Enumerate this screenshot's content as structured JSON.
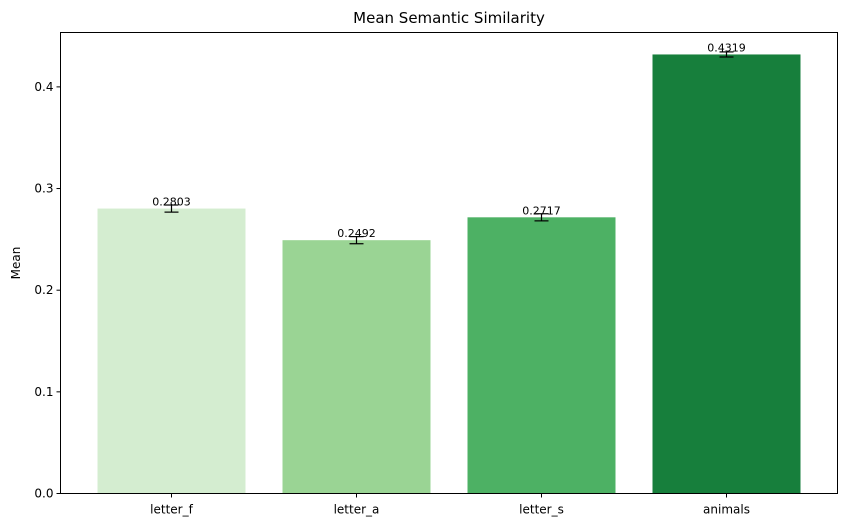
{
  "chart_data": {
    "type": "bar",
    "title": "Mean Semantic Similarity",
    "xlabel": "",
    "ylabel": "Mean",
    "categories": [
      "letter_f",
      "letter_a",
      "letter_s",
      "animals"
    ],
    "values": [
      0.2803,
      0.2492,
      0.2717,
      0.4319
    ],
    "value_labels": [
      "0.2803",
      "0.2492",
      "0.2717",
      "0.4319"
    ],
    "error": [
      0.0035,
      0.0035,
      0.0035,
      0.0025
    ],
    "colors": [
      "#d4edd0",
      "#9ad494",
      "#4db164",
      "#177f3c"
    ],
    "ylim": [
      0,
      0.4535
    ],
    "yticks": [
      0.0,
      0.1,
      0.2,
      0.3,
      0.4
    ],
    "ytick_labels": [
      "0.0",
      "0.1",
      "0.2",
      "0.3",
      "0.4"
    ],
    "grid": false,
    "legend": false
  }
}
